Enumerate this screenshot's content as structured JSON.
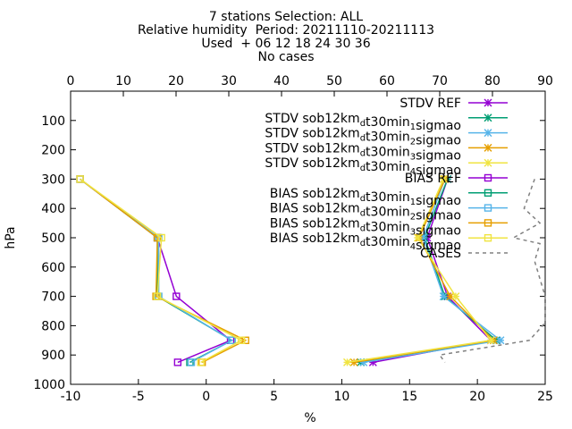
{
  "chart_data": {
    "type": "line",
    "title_lines": [
      "7 stations Selection: ALL",
      "Relative humidity  Period: 20211110-20211113",
      "Used  + 06 12 18 24 30 36",
      "No cases"
    ],
    "xlabel": "%",
    "ylabel": "hPa",
    "xlim": [
      -10,
      25
    ],
    "ylim": [
      1000,
      0
    ],
    "x2lim": [
      0,
      90
    ],
    "y_axis_inverted": true,
    "grid": false,
    "legend_position": "top-right",
    "x_ticks": [
      "-10",
      "-5",
      "0",
      "5",
      "10",
      "15",
      "20",
      "25"
    ],
    "x2_ticks": [
      "0",
      "10",
      "20",
      "30",
      "40",
      "50",
      "60",
      "70",
      "80",
      "90"
    ],
    "y_ticks": [
      "100",
      "200",
      "300",
      "400",
      "500",
      "600",
      "700",
      "800",
      "900",
      "1000"
    ],
    "pressure_levels": [
      300,
      500,
      700,
      850,
      925
    ],
    "series": [
      {
        "name_main": "STDV REF",
        "name_sub": "",
        "name_tail": "",
        "color": "#9400d3",
        "dash": false,
        "marker": "star",
        "x": [
          17.8,
          16.3,
          17.8,
          21.0,
          12.3
        ]
      },
      {
        "name_main": "STDV sob12km",
        "name_sub": "d",
        "name_tail": "t30min",
        "name_sub2": "1",
        "name_tail2": "sigmao",
        "color": "#009e73",
        "dash": false,
        "marker": "star",
        "x": [
          17.8,
          16.1,
          17.6,
          21.4,
          11.4
        ]
      },
      {
        "name_main": "STDV sob12km",
        "name_sub": "d",
        "name_tail": "t30min",
        "name_sub2": "2",
        "name_tail2": "sigmao",
        "color": "#56b4e9",
        "dash": false,
        "marker": "star",
        "x": [
          17.6,
          16.0,
          17.5,
          21.7,
          11.6
        ]
      },
      {
        "name_main": "STDV sob12km",
        "name_sub": "d",
        "name_tail": "t30min",
        "name_sub2": "3",
        "name_tail2": "sigmao",
        "color": "#e69f00",
        "dash": false,
        "marker": "star",
        "x": [
          17.6,
          15.7,
          18.0,
          21.2,
          10.9
        ]
      },
      {
        "name_main": "STDV sob12km",
        "name_sub": "d",
        "name_tail": "t30min",
        "name_sub2": "4",
        "name_tail2": "sigmao",
        "color": "#f0e442",
        "dash": false,
        "marker": "star",
        "x": [
          17.5,
          15.6,
          18.4,
          21.0,
          10.4
        ]
      },
      {
        "name_main": "BIAS REF",
        "name_sub": "",
        "name_tail": "",
        "color": "#9400d3",
        "dash": false,
        "marker": "square",
        "x": [
          -9.3,
          -3.6,
          -2.2,
          1.8,
          -2.1
        ]
      },
      {
        "name_main": "BIAS sob12km",
        "name_sub": "d",
        "name_tail": "t30min",
        "name_sub2": "1",
        "name_tail2": "sigmao",
        "color": "#009e73",
        "dash": false,
        "marker": "square",
        "x": [
          -9.3,
          -3.6,
          -3.6,
          1.9,
          -1.2
        ]
      },
      {
        "name_main": "BIAS sob12km",
        "name_sub": "d",
        "name_tail": "t30min",
        "name_sub2": "2",
        "name_tail2": "sigmao",
        "color": "#56b4e9",
        "dash": false,
        "marker": "square",
        "x": [
          -9.3,
          -3.5,
          -3.5,
          1.9,
          -1.1
        ]
      },
      {
        "name_main": "BIAS sob12km",
        "name_sub": "d",
        "name_tail": "t30min",
        "name_sub2": "3",
        "name_tail2": "sigmao",
        "color": "#e69f00",
        "dash": false,
        "marker": "square",
        "x": [
          -9.3,
          -3.6,
          -3.7,
          2.9,
          -0.3
        ]
      },
      {
        "name_main": "BIAS sob12km",
        "name_sub": "d",
        "name_tail": "t30min",
        "name_sub2": "4",
        "name_tail2": "sigmao",
        "color": "#f0e442",
        "dash": false,
        "marker": "square",
        "x": [
          -9.3,
          -3.3,
          -3.6,
          2.6,
          -0.4
        ]
      }
    ],
    "cases": {
      "name": "CASES",
      "color": "#808080",
      "dash": true,
      "x2": [
        88,
        86,
        89,
        84,
        89,
        88,
        90,
        90,
        87,
        70,
        71
      ],
      "y": [
        300,
        400,
        450,
        500,
        520,
        580,
        700,
        790,
        850,
        900,
        925
      ]
    }
  }
}
